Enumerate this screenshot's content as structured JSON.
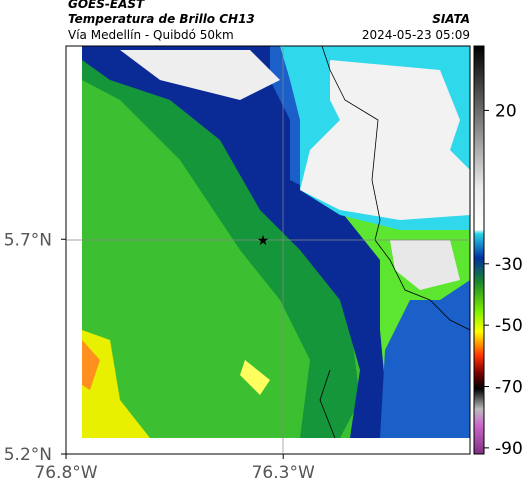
{
  "header": {
    "source": "GOES-EAST",
    "product": "Temperatura de Brillo CH13",
    "route": "Vía Medellín - Quibdó 50km",
    "agency": "SIATA",
    "datetime": "2024-05-23 05:09"
  },
  "map": {
    "xlim": [
      -76.8,
      -75.87
    ],
    "ylim": [
      5.2,
      6.15
    ],
    "xticks": [
      {
        "value": -76.8,
        "label": "76.8°W"
      },
      {
        "value": -76.3,
        "label": "76.3°W"
      }
    ],
    "yticks": [
      {
        "value": 5.2,
        "label": "5.2°N"
      },
      {
        "value": 5.7,
        "label": "5.7°N"
      }
    ]
  },
  "colorbar": {
    "clim": [
      -92,
      41
    ],
    "ticks": [
      20,
      -30,
      -50,
      -70,
      -90
    ]
  }
}
